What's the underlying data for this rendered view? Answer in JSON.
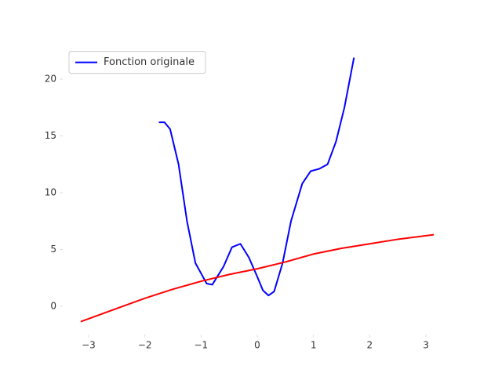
{
  "chart_data": {
    "type": "line",
    "series": [
      {
        "name": "Fonction originale",
        "color": "#0000ff",
        "x": [
          -1.75,
          -1.65,
          -1.55,
          -1.4,
          -1.25,
          -1.1,
          -0.9,
          -0.8,
          -0.6,
          -0.45,
          -0.3,
          -0.15,
          0,
          0.1,
          0.2,
          0.3,
          0.45,
          0.6,
          0.8,
          0.95,
          1.1,
          1.25,
          1.4,
          1.55,
          1.72
        ],
        "values": [
          16.2,
          16.2,
          15.6,
          12.5,
          7.5,
          3.8,
          2.0,
          1.9,
          3.5,
          5.2,
          5.5,
          4.3,
          2.6,
          1.4,
          0.95,
          1.3,
          3.8,
          7.5,
          10.8,
          11.9,
          12.1,
          12.5,
          14.5,
          17.5,
          21.9
        ]
      },
      {
        "color": "#ff0000",
        "x": [
          -3.14,
          -2.5,
          -2,
          -1.5,
          -1,
          -0.5,
          0,
          0.5,
          1,
          1.5,
          2,
          2.5,
          3.14
        ],
        "values": [
          -1.35,
          -0.2,
          0.7,
          1.5,
          2.2,
          2.8,
          3.3,
          3.9,
          4.6,
          5.1,
          5.5,
          5.9,
          6.3
        ]
      }
    ],
    "xlim": [
      -3.46,
      3.46
    ],
    "ylim": [
      -2.5,
      23.0
    ],
    "xticks": [
      {
        "value": -3,
        "label": "−3"
      },
      {
        "value": -2,
        "label": "−2"
      },
      {
        "value": -1,
        "label": "−1"
      },
      0,
      1,
      2,
      3
    ],
    "yticks": [
      0,
      5,
      10,
      15,
      20
    ],
    "legend": "upper left"
  }
}
